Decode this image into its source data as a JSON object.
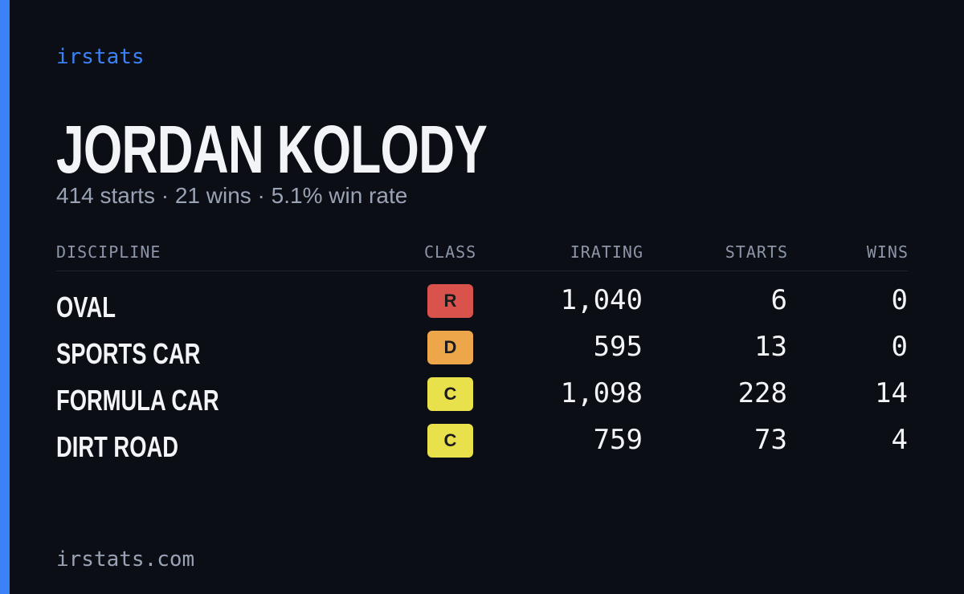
{
  "brand": "irstats",
  "driver": {
    "name": "JORDAN KOLODY",
    "summary": "414 starts · 21 wins · 5.1% win rate"
  },
  "table": {
    "headers": [
      "DISCIPLINE",
      "CLASS",
      "IRATING",
      "STARTS",
      "WINS"
    ],
    "rows": [
      {
        "discipline": "OVAL",
        "class": "R",
        "class_color": "#d9524c",
        "irating": "1,040",
        "starts": "6",
        "wins": "0"
      },
      {
        "discipline": "SPORTS CAR",
        "class": "D",
        "class_color": "#eea64a",
        "irating": "595",
        "starts": "13",
        "wins": "0"
      },
      {
        "discipline": "FORMULA CAR",
        "class": "C",
        "class_color": "#e9e14b",
        "irating": "1,098",
        "starts": "228",
        "wins": "14"
      },
      {
        "discipline": "DIRT ROAD",
        "class": "C",
        "class_color": "#e9e14b",
        "irating": "759",
        "starts": "73",
        "wins": "4"
      }
    ]
  },
  "footer": "irstats.com"
}
